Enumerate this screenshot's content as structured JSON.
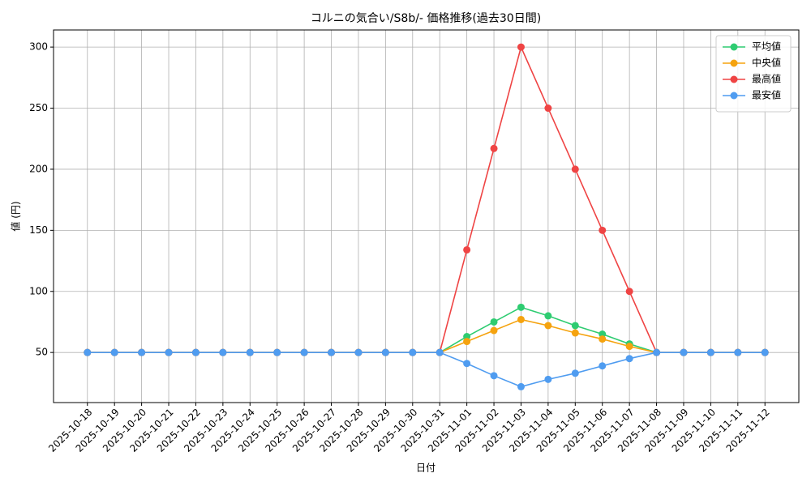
{
  "chart_data": {
    "type": "line",
    "title": "コルニの気合い/S8b/- 価格推移(過去30日間)",
    "x_label": "日付",
    "y_label": "値 (円)",
    "categories": [
      "2025-10-18",
      "2025-10-19",
      "2025-10-20",
      "2025-10-21",
      "2025-10-22",
      "2025-10-23",
      "2025-10-24",
      "2025-10-25",
      "2025-10-26",
      "2025-10-27",
      "2025-10-28",
      "2025-10-29",
      "2025-10-30",
      "2025-10-31",
      "2025-11-01",
      "2025-11-02",
      "2025-11-03",
      "2025-11-04",
      "2025-11-05",
      "2025-11-06",
      "2025-11-07",
      "2025-11-08",
      "2025-11-09",
      "2025-11-10",
      "2025-11-11",
      "2025-11-12"
    ],
    "series": [
      {
        "name": "平均値",
        "color": "#2ecc71",
        "values": [
          50,
          50,
          50,
          50,
          50,
          50,
          50,
          50,
          50,
          50,
          50,
          50,
          50,
          50,
          63,
          75,
          87,
          80,
          72,
          65,
          57,
          50,
          50,
          50,
          50,
          50
        ]
      },
      {
        "name": "中央値",
        "color": "#f5a30f",
        "values": [
          50,
          50,
          50,
          50,
          50,
          50,
          50,
          50,
          50,
          50,
          50,
          50,
          50,
          50,
          59,
          68,
          77,
          72,
          66,
          61,
          55,
          50,
          50,
          50,
          50,
          50
        ]
      },
      {
        "name": "最高値",
        "color": "#ef4444",
        "values": [
          50,
          50,
          50,
          50,
          50,
          50,
          50,
          50,
          50,
          50,
          50,
          50,
          50,
          50,
          134,
          217,
          300,
          250,
          200,
          150,
          100,
          50,
          50,
          50,
          50,
          50
        ]
      },
      {
        "name": "最安値",
        "color": "#4f9cf0",
        "values": [
          50,
          50,
          50,
          50,
          50,
          50,
          50,
          50,
          50,
          50,
          50,
          50,
          50,
          50,
          41,
          31,
          22,
          28,
          33,
          39,
          45,
          50,
          50,
          50,
          50,
          50
        ]
      }
    ],
    "ylim": [
      9,
      314
    ],
    "yticks": [
      50,
      100,
      150,
      200,
      250,
      300
    ],
    "grid": true,
    "legend": "upper-right"
  }
}
